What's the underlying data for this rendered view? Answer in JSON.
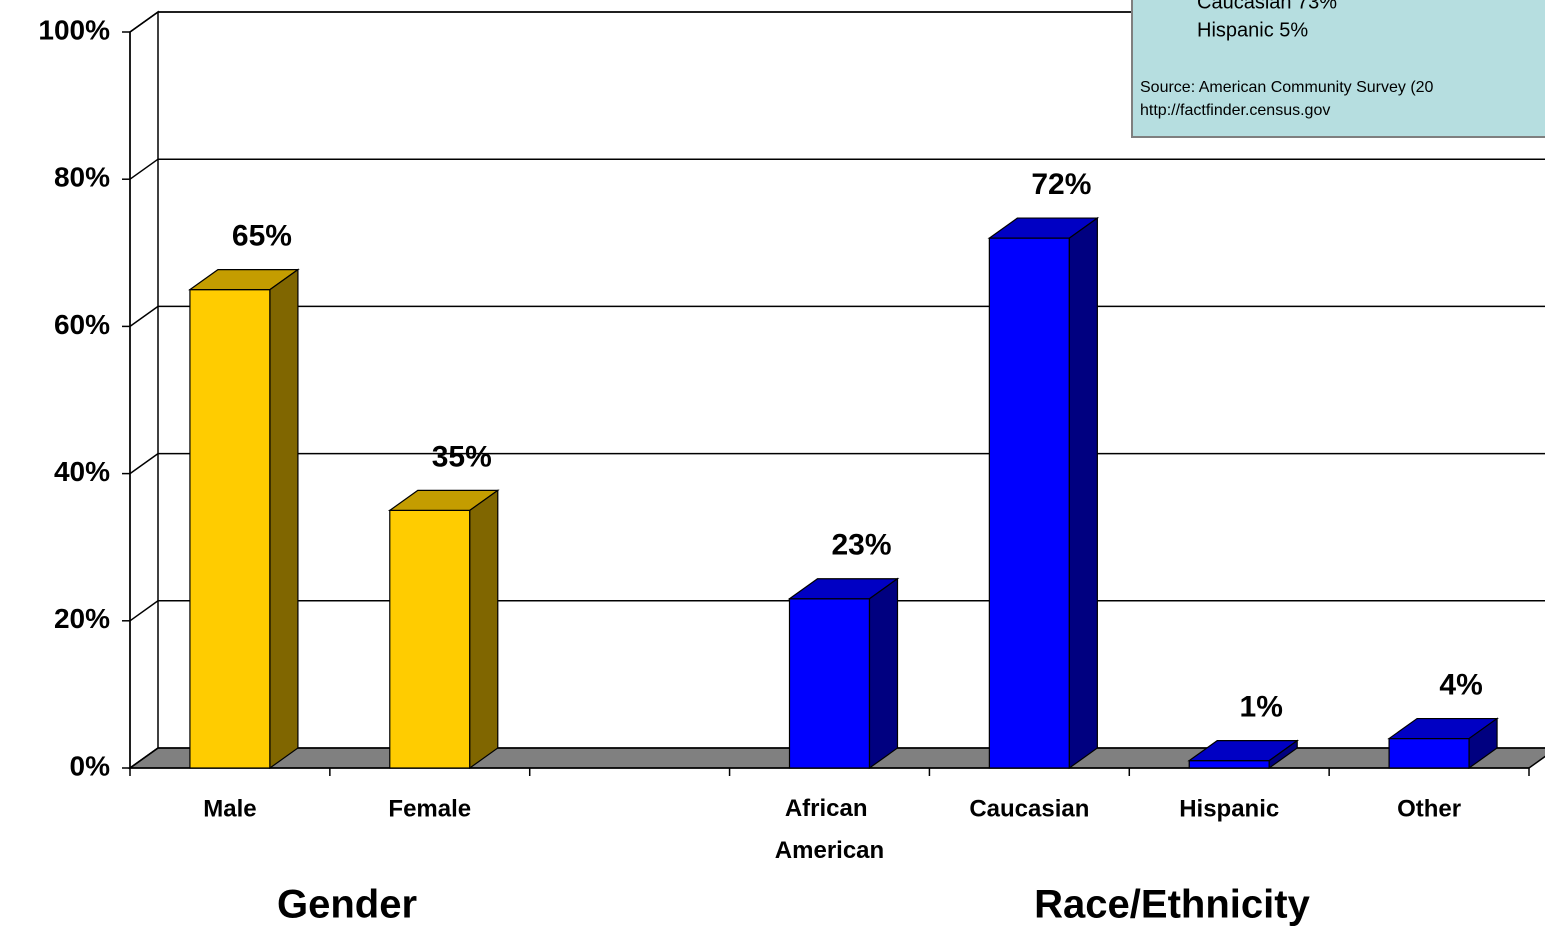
{
  "chart_data": {
    "type": "bar3d",
    "categories": [
      "Male",
      "Female",
      null,
      "African American",
      "Caucasian",
      "Hispanic",
      "Other"
    ],
    "values": [
      65,
      35,
      null,
      23,
      72,
      1,
      4
    ],
    "value_labels": [
      "65%",
      "35%",
      null,
      "23%",
      "72%",
      "1%",
      "4%"
    ],
    "colors": [
      "#ffcc00",
      "#ffcc00",
      null,
      "#0000ff",
      "#0000ff",
      "#0000ff",
      "#0000ff"
    ],
    "ylim": [
      0,
      100
    ],
    "yticks": [
      {
        "value": 0,
        "label": "0%"
      },
      {
        "value": 20,
        "label": "20%"
      },
      {
        "value": 40,
        "label": "40%"
      },
      {
        "value": 60,
        "label": "60%"
      },
      {
        "value": 80,
        "label": "80%"
      },
      {
        "value": 100,
        "label": "100%"
      }
    ],
    "grid": true,
    "group_labels": [
      "Gender",
      "Race/Ethnicity"
    ],
    "annotations": [
      "Caucasian 73%",
      "Hispanic 5%",
      "Source: American Community Survey  (20",
      "http://factfinder.census.gov"
    ]
  }
}
